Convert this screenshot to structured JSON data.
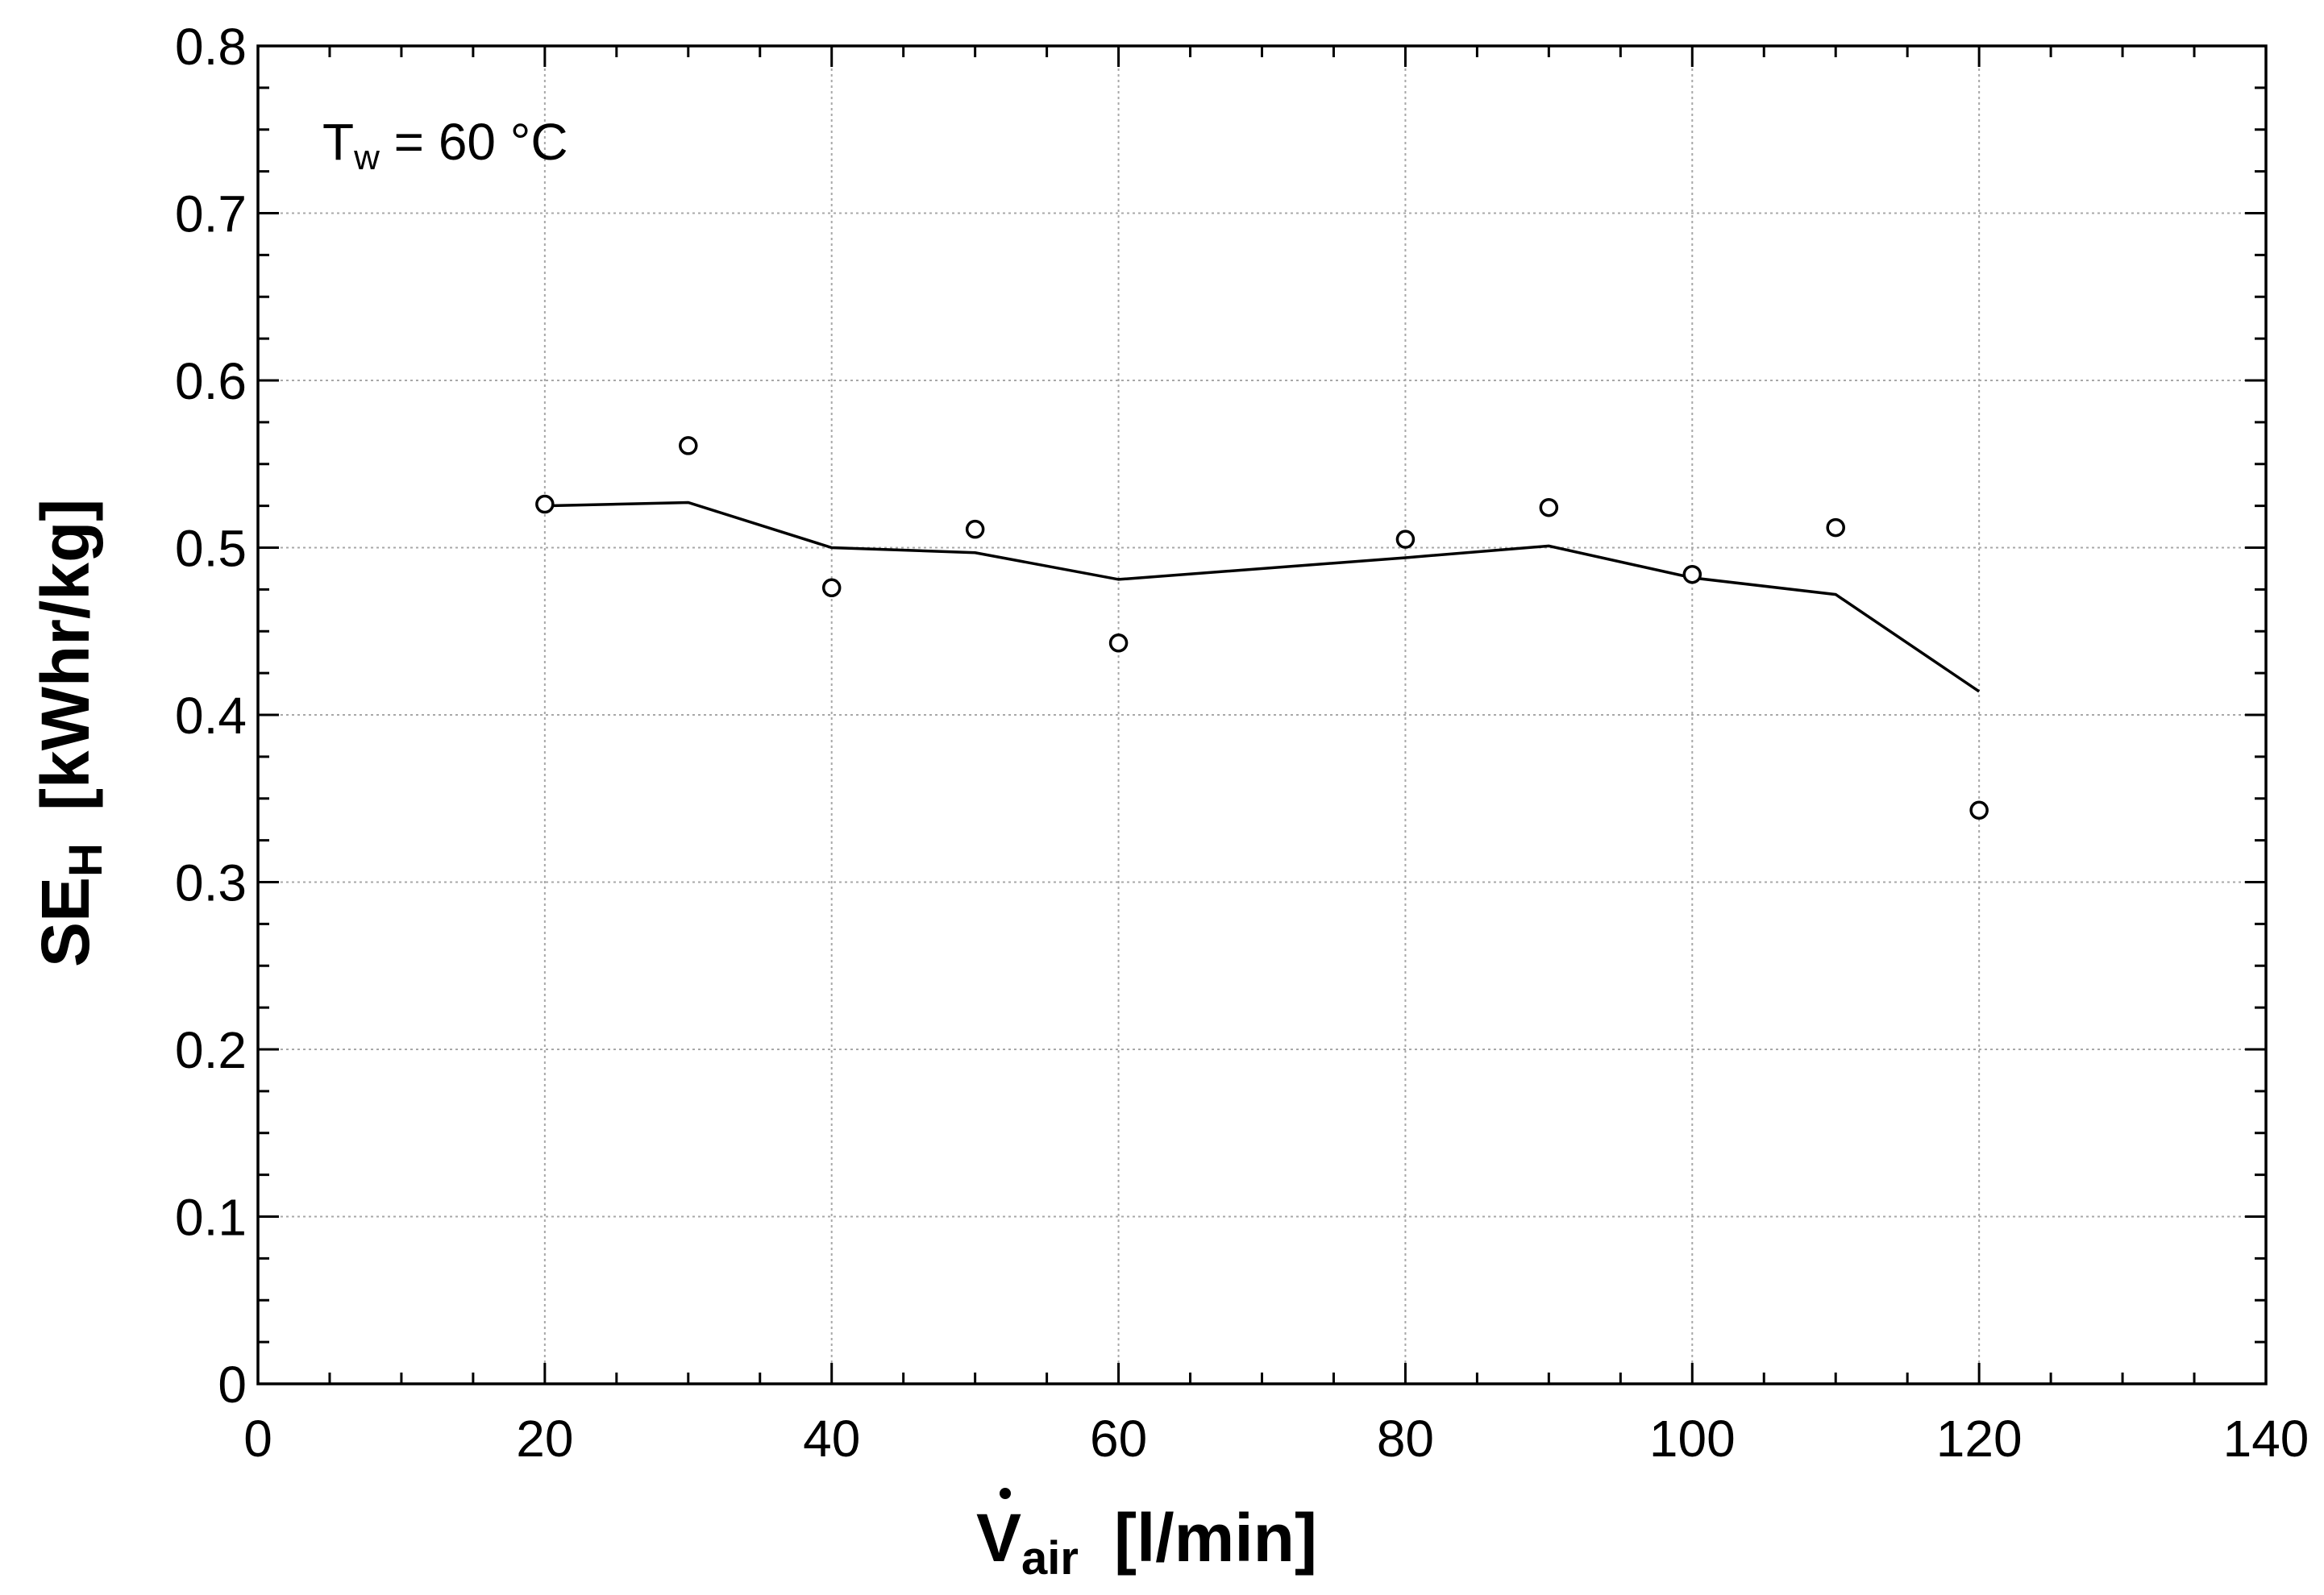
{
  "chart_data": {
    "type": "scatter",
    "annotation": {
      "main": "T",
      "sub": "w",
      "rest": " = 60 °C"
    },
    "xlabel": {
      "main": "V",
      "sub": "air",
      "unit": "[l/min]"
    },
    "ylabel": {
      "main": "SE",
      "sub": "H",
      "unit": "[kWhr/kg]"
    },
    "xlim": [
      0,
      140
    ],
    "ylim": [
      0,
      0.8
    ],
    "xticks": [
      "0",
      "20",
      "40",
      "60",
      "80",
      "100",
      "120",
      "140"
    ],
    "yticks": [
      "0",
      "0.1",
      "0.2",
      "0.3",
      "0.4",
      "0.5",
      "0.6",
      "0.7",
      "0.8"
    ],
    "grid": true,
    "series": [
      {
        "style": "markers",
        "x": [
          20,
          30,
          40,
          50,
          60,
          80,
          90,
          100,
          110,
          120
        ],
        "y": [
          0.526,
          0.561,
          0.476,
          0.511,
          0.443,
          0.505,
          0.524,
          0.484,
          0.512,
          0.343
        ]
      },
      {
        "style": "line",
        "x": [
          20,
          30,
          40,
          50,
          60,
          80,
          90,
          100,
          110,
          120
        ],
        "y": [
          0.525,
          0.527,
          0.5,
          0.497,
          0.481,
          0.494,
          0.501,
          0.482,
          0.472,
          0.414
        ]
      }
    ]
  }
}
